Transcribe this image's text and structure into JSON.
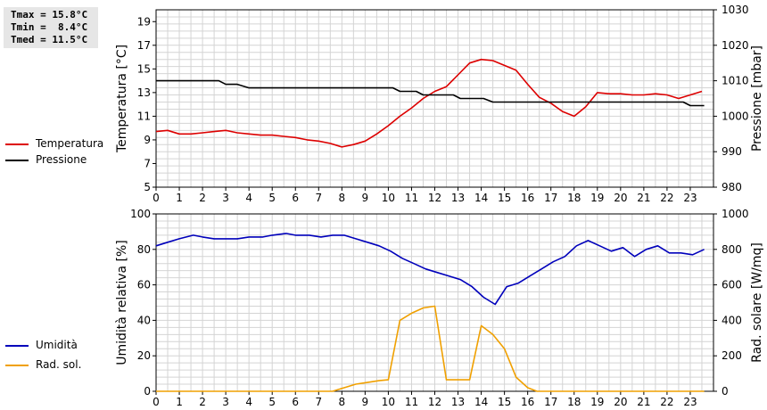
{
  "stats": {
    "tmax": "Tmax = 15.8°C",
    "tmin": "Tmin =  8.4°C",
    "tmed": "Tmed = 11.5°C"
  },
  "colors": {
    "temperatura": "#dd0000",
    "pressione": "#000000",
    "umidita": "#0000bb",
    "rad_sol": "#f0a000",
    "grid": "#d4d4d4"
  },
  "legend_top": [
    {
      "label": "Temperatura",
      "color": "#dd0000"
    },
    {
      "label": "Pressione",
      "color": "#000000"
    }
  ],
  "legend_bottom": [
    {
      "label": "Umidità",
      "color": "#0000bb"
    },
    {
      "label": "Rad. sol.",
      "color": "#f0a000"
    }
  ],
  "chart_data": [
    {
      "type": "line",
      "ylabel_left": "Temperatura [°C]",
      "ylabel_right": "Pressione [mbar]",
      "xlim": [
        0,
        24
      ],
      "ylim_left": [
        5,
        20
      ],
      "ylim_right": [
        980,
        1030
      ],
      "x_ticks": [
        0,
        1,
        2,
        3,
        4,
        5,
        6,
        7,
        8,
        9,
        10,
        11,
        12,
        13,
        14,
        15,
        16,
        17,
        18,
        19,
        20,
        21,
        22,
        23
      ],
      "y_ticks_left": [
        5,
        7,
        9,
        11,
        13,
        15,
        17,
        19
      ],
      "y_ticks_right": [
        980,
        990,
        1000,
        1010,
        1020,
        1030
      ],
      "grid": true,
      "series": [
        {
          "name": "Temperatura",
          "axis": "left",
          "color": "#dd0000",
          "points": [
            [
              0,
              9.7
            ],
            [
              0.5,
              9.8
            ],
            [
              1,
              9.5
            ],
            [
              1.5,
              9.5
            ],
            [
              2,
              9.6
            ],
            [
              2.5,
              9.7
            ],
            [
              3,
              9.8
            ],
            [
              3.5,
              9.6
            ],
            [
              4,
              9.5
            ],
            [
              4.5,
              9.4
            ],
            [
              5,
              9.4
            ],
            [
              5.5,
              9.3
            ],
            [
              6,
              9.2
            ],
            [
              6.5,
              9.0
            ],
            [
              7,
              8.9
            ],
            [
              7.5,
              8.7
            ],
            [
              8,
              8.4
            ],
            [
              8.5,
              8.6
            ],
            [
              9,
              8.9
            ],
            [
              9.5,
              9.5
            ],
            [
              10,
              10.2
            ],
            [
              10.5,
              11.0
            ],
            [
              11,
              11.7
            ],
            [
              11.5,
              12.5
            ],
            [
              12,
              13.1
            ],
            [
              12.5,
              13.5
            ],
            [
              13,
              14.5
            ],
            [
              13.5,
              15.5
            ],
            [
              14,
              15.8
            ],
            [
              14.5,
              15.7
            ],
            [
              15,
              15.3
            ],
            [
              15.5,
              14.9
            ],
            [
              16,
              13.7
            ],
            [
              16.5,
              12.6
            ],
            [
              17,
              12.1
            ],
            [
              17.5,
              11.4
            ],
            [
              18,
              11.0
            ],
            [
              18.5,
              11.8
            ],
            [
              19,
              13.0
            ],
            [
              19.5,
              12.9
            ],
            [
              20,
              12.9
            ],
            [
              20.5,
              12.8
            ],
            [
              21,
              12.8
            ],
            [
              21.5,
              12.9
            ],
            [
              22,
              12.8
            ],
            [
              22.5,
              12.5
            ],
            [
              23,
              12.8
            ],
            [
              23.5,
              13.1
            ]
          ]
        },
        {
          "name": "Pressione",
          "axis": "right",
          "color": "#000000",
          "points": [
            [
              0,
              1010
            ],
            [
              2.7,
              1010
            ],
            [
              3.0,
              1009
            ],
            [
              3.5,
              1009
            ],
            [
              4.0,
              1008
            ],
            [
              10.2,
              1008
            ],
            [
              10.5,
              1007
            ],
            [
              11.2,
              1007
            ],
            [
              11.5,
              1006
            ],
            [
              12.8,
              1006
            ],
            [
              13.1,
              1005
            ],
            [
              14.1,
              1005
            ],
            [
              14.5,
              1004
            ],
            [
              22.7,
              1004
            ],
            [
              23.0,
              1003
            ],
            [
              23.6,
              1003
            ]
          ]
        }
      ]
    },
    {
      "type": "line",
      "ylabel_left": "Umidità relativa [%]",
      "ylabel_right": "Rad. solare [W/mq]",
      "xlim": [
        0,
        24
      ],
      "ylim_left": [
        0,
        100
      ],
      "ylim_right": [
        0,
        1000
      ],
      "x_ticks": [
        0,
        1,
        2,
        3,
        4,
        5,
        6,
        7,
        8,
        9,
        10,
        11,
        12,
        13,
        14,
        15,
        16,
        17,
        18,
        19,
        20,
        21,
        22,
        23
      ],
      "y_ticks_left": [
        0,
        20,
        40,
        60,
        80,
        100
      ],
      "y_ticks_right": [
        0,
        200,
        400,
        600,
        800,
        1000
      ],
      "grid": true,
      "series": [
        {
          "name": "Umidità",
          "axis": "left",
          "color": "#0000bb",
          "points": [
            [
              0,
              82
            ],
            [
              0.5,
              84
            ],
            [
              1,
              86
            ],
            [
              1.6,
              88
            ],
            [
              2,
              87
            ],
            [
              2.5,
              86
            ],
            [
              3,
              86
            ],
            [
              3.5,
              86
            ],
            [
              4,
              87
            ],
            [
              4.6,
              87
            ],
            [
              5,
              88
            ],
            [
              5.6,
              89
            ],
            [
              6,
              88
            ],
            [
              6.6,
              88
            ],
            [
              7.1,
              87
            ],
            [
              7.6,
              88
            ],
            [
              8.1,
              88
            ],
            [
              8.6,
              86
            ],
            [
              9.1,
              84
            ],
            [
              9.6,
              82
            ],
            [
              10.1,
              79
            ],
            [
              10.6,
              75
            ],
            [
              11.1,
              72
            ],
            [
              11.6,
              69
            ],
            [
              12.1,
              67
            ],
            [
              12.6,
              65
            ],
            [
              13.1,
              63
            ],
            [
              13.6,
              59
            ],
            [
              14.1,
              53
            ],
            [
              14.6,
              49
            ],
            [
              15.1,
              59
            ],
            [
              15.6,
              61
            ],
            [
              16.1,
              65
            ],
            [
              16.6,
              69
            ],
            [
              17.1,
              73
            ],
            [
              17.6,
              76
            ],
            [
              18.1,
              82
            ],
            [
              18.6,
              85
            ],
            [
              19.1,
              82
            ],
            [
              19.6,
              79
            ],
            [
              20.1,
              81
            ],
            [
              20.6,
              76
            ],
            [
              21.1,
              80
            ],
            [
              21.6,
              82
            ],
            [
              22.1,
              78
            ],
            [
              22.6,
              78
            ],
            [
              23.1,
              77
            ],
            [
              23.6,
              80
            ]
          ]
        },
        {
          "name": "Rad. sol.",
          "axis": "right",
          "color": "#f0a000",
          "points": [
            [
              0,
              0
            ],
            [
              7.6,
              0
            ],
            [
              8.1,
              20
            ],
            [
              8.6,
              40
            ],
            [
              9.1,
              50
            ],
            [
              9.6,
              60
            ],
            [
              10.0,
              65
            ],
            [
              10.5,
              400
            ],
            [
              11.0,
              440
            ],
            [
              11.5,
              470
            ],
            [
              12.0,
              480
            ],
            [
              12.5,
              65
            ],
            [
              13.0,
              65
            ],
            [
              13.5,
              65
            ],
            [
              14.0,
              370
            ],
            [
              14.5,
              320
            ],
            [
              15.0,
              240
            ],
            [
              15.5,
              80
            ],
            [
              16.0,
              20
            ],
            [
              16.4,
              0
            ],
            [
              23.6,
              0
            ]
          ]
        }
      ]
    }
  ]
}
